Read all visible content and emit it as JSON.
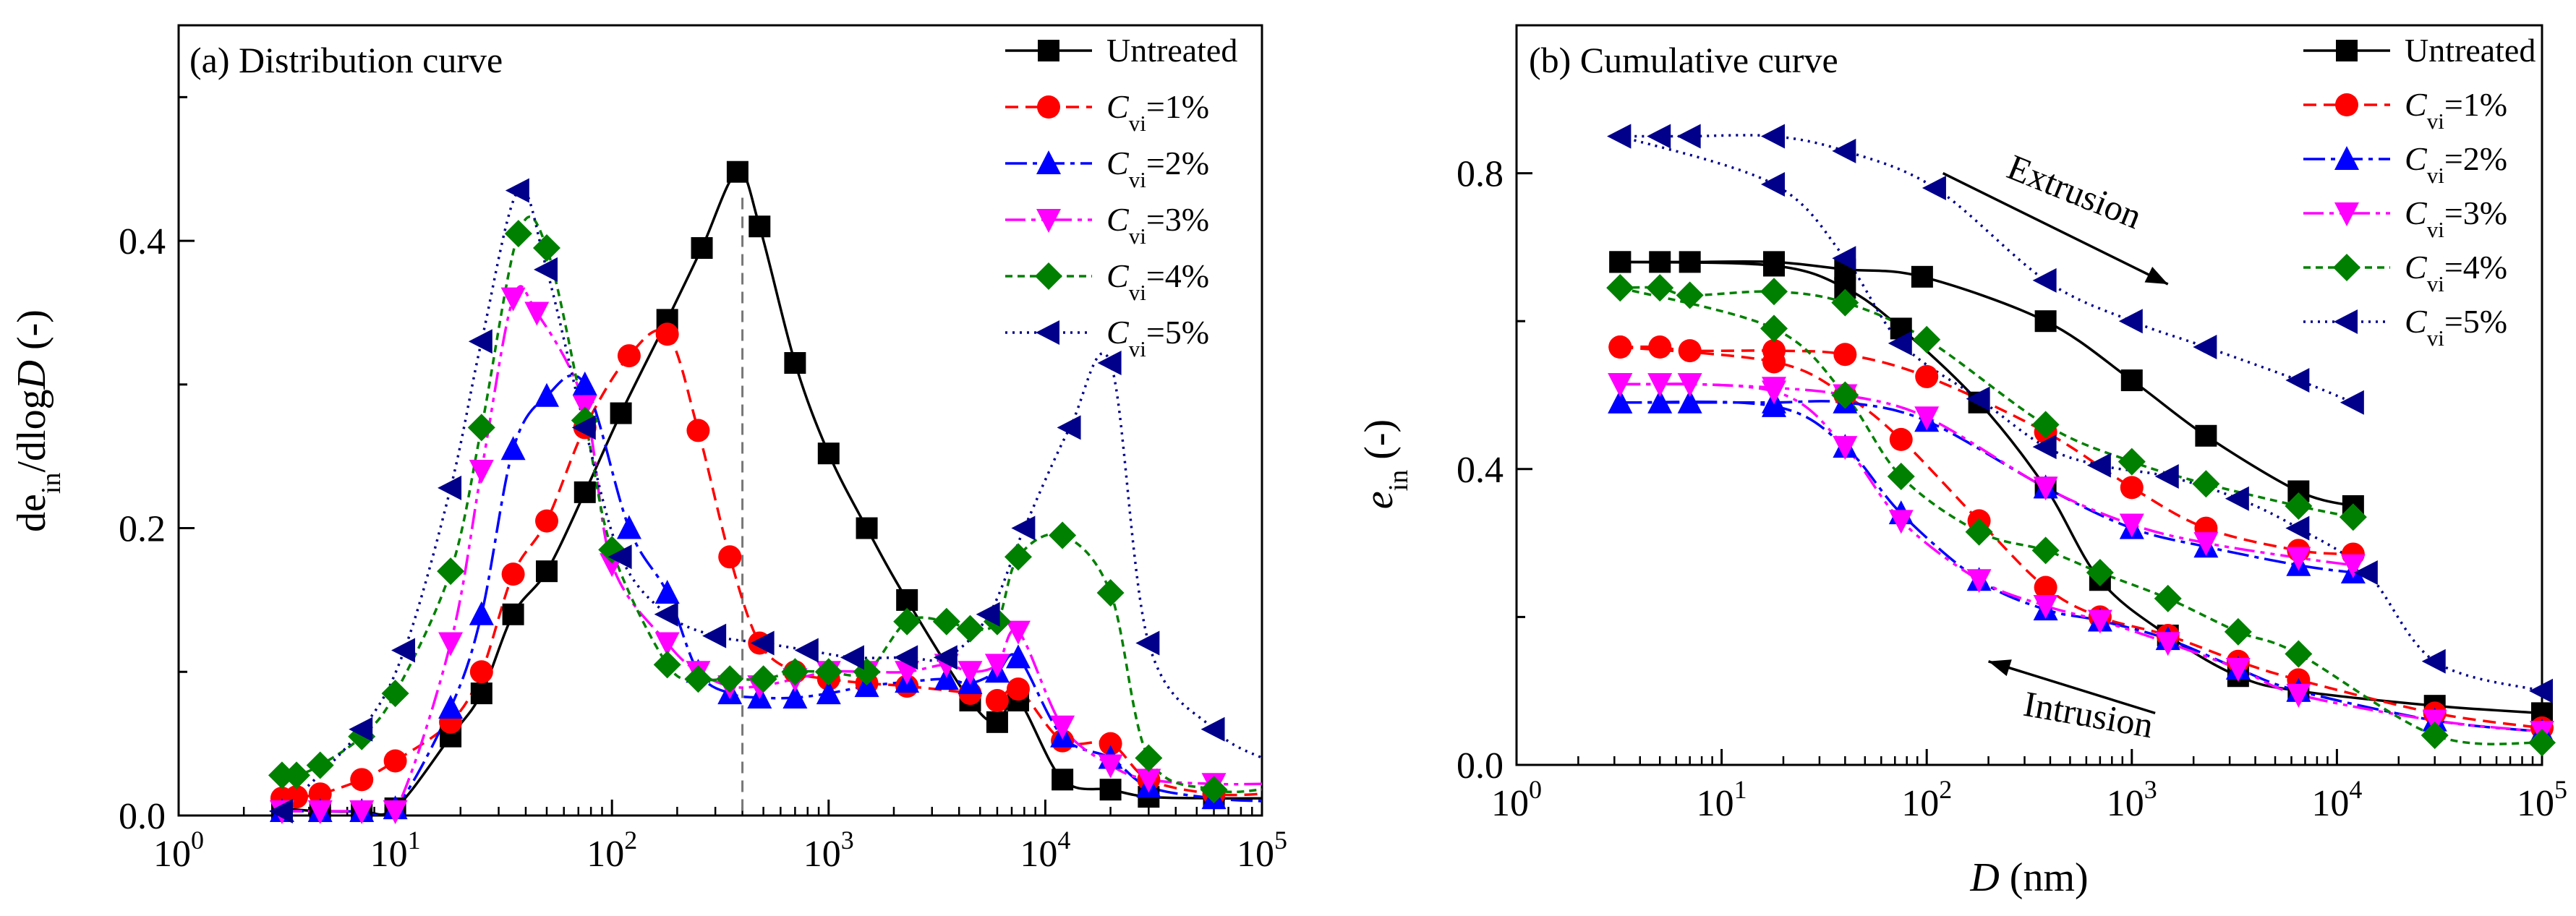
{
  "chart_data": [
    {
      "type": "line",
      "panel": "a",
      "title": "(a) Distribution curve",
      "xscale": "log",
      "xlim": [
        1,
        100000
      ],
      "ylim": [
        0,
        0.55
      ],
      "xlabel": "",
      "ylabel": {
        "pre": "de",
        "sub": "in",
        "mid": "/dlog",
        "ital": "D",
        "post": " (-)"
      },
      "xticks": [
        {
          "base": "10",
          "exp": "0",
          "value": 1
        },
        {
          "base": "10",
          "exp": "1",
          "value": 10
        },
        {
          "base": "10",
          "exp": "2",
          "value": 100
        },
        {
          "base": "10",
          "exp": "3",
          "value": 1000
        },
        {
          "base": "10",
          "exp": "4",
          "value": 10000
        },
        {
          "base": "10",
          "exp": "5",
          "value": 100000
        }
      ],
      "yticks": [
        {
          "label": "0.0",
          "value": 0
        },
        {
          "label": "0.2",
          "value": 0.2
        },
        {
          "label": "0.4",
          "value": 0.4
        }
      ],
      "reference_line_x": 400,
      "legend_position": "top-right",
      "series": [
        {
          "name": "Untreated",
          "legend": {
            "base": "Untreated"
          },
          "color": "#000000",
          "marker": "square",
          "dash": "solid",
          "x": [
            3,
            4.5,
            7,
            10,
            18,
            25,
            35,
            50,
            75,
            110,
            180,
            260,
            380,
            480,
            700,
            1000,
            1500,
            2300,
            4500,
            6000,
            7500,
            12000,
            20000,
            30000,
            60000,
            100000
          ],
          "y": [
            0.005,
            0.003,
            0.003,
            0.005,
            0.055,
            0.085,
            0.14,
            0.17,
            0.225,
            0.28,
            0.345,
            0.395,
            0.448,
            0.41,
            0.315,
            0.252,
            0.2,
            0.15,
            0.08,
            0.065,
            0.08,
            0.025,
            0.018,
            0.013,
            0.012,
            0.012
          ]
        },
        {
          "name": "Cvi=1%",
          "legend": {
            "base": "C",
            "sub": "vi",
            "post": "=1%"
          },
          "color": "#ff0000",
          "marker": "circle",
          "dash": "18,10",
          "x": [
            3,
            3.5,
            4.5,
            7,
            10,
            18,
            25,
            35,
            50,
            75,
            120,
            180,
            250,
            350,
            480,
            700,
            1000,
            1500,
            2300,
            4500,
            6000,
            7500,
            12000,
            20000,
            30000,
            60000,
            100000
          ],
          "y": [
            0.012,
            0.013,
            0.015,
            0.025,
            0.038,
            0.065,
            0.1,
            0.168,
            0.205,
            0.27,
            0.32,
            0.335,
            0.268,
            0.18,
            0.12,
            0.1,
            0.095,
            0.092,
            0.09,
            0.085,
            0.08,
            0.088,
            0.052,
            0.05,
            0.025,
            0.015,
            0.015
          ]
        },
        {
          "name": "Cvi=2%",
          "legend": {
            "base": "C",
            "sub": "vi",
            "post": "=2%"
          },
          "color": "#0000ff",
          "marker": "triangle-up",
          "dash": "30,8,6,8",
          "x": [
            3,
            4.5,
            7,
            10,
            18,
            25,
            35,
            50,
            75,
            120,
            180,
            250,
            350,
            480,
            700,
            1000,
            1500,
            2300,
            3500,
            4500,
            6000,
            7500,
            12000,
            20000,
            30000,
            60000,
            100000
          ],
          "y": [
            0.003,
            0.003,
            0.003,
            0.005,
            0.075,
            0.14,
            0.255,
            0.292,
            0.3,
            0.2,
            0.155,
            0.1,
            0.085,
            0.082,
            0.082,
            0.085,
            0.09,
            0.093,
            0.095,
            0.092,
            0.1,
            0.11,
            0.055,
            0.04,
            0.02,
            0.012,
            0.01
          ]
        },
        {
          "name": "Cvi=3%",
          "legend": {
            "base": "C",
            "sub": "vi",
            "post": "=3%"
          },
          "color": "#ff00ff",
          "marker": "triangle-down",
          "dash": "28,8,6,8,6,8",
          "x": [
            3,
            4.5,
            7,
            10,
            18,
            25,
            35,
            45,
            75,
            100,
            180,
            250,
            350,
            480,
            700,
            1000,
            1500,
            2300,
            3500,
            4500,
            6000,
            7500,
            12000,
            20000,
            30000,
            60000,
            100000
          ],
          "y": [
            0.003,
            0.003,
            0.003,
            0.003,
            0.12,
            0.24,
            0.36,
            0.35,
            0.285,
            0.175,
            0.12,
            0.1,
            0.09,
            0.09,
            0.095,
            0.1,
            0.1,
            0.1,
            0.105,
            0.1,
            0.105,
            0.128,
            0.062,
            0.035,
            0.025,
            0.022,
            0.022
          ]
        },
        {
          "name": "Cvi=4%",
          "legend": {
            "base": "C",
            "sub": "vi",
            "post": "=4%"
          },
          "color": "#008000",
          "marker": "diamond",
          "dash": "10,7",
          "x": [
            3,
            3.5,
            4.5,
            7,
            10,
            18,
            25,
            37,
            50,
            75,
            100,
            180,
            250,
            350,
            500,
            700,
            1000,
            1500,
            2300,
            3500,
            4500,
            6000,
            7500,
            12000,
            20000,
            30000,
            60000,
            100000
          ],
          "y": [
            0.028,
            0.028,
            0.035,
            0.055,
            0.085,
            0.17,
            0.27,
            0.405,
            0.395,
            0.275,
            0.185,
            0.105,
            0.095,
            0.095,
            0.095,
            0.1,
            0.1,
            0.1,
            0.135,
            0.135,
            0.13,
            0.135,
            0.18,
            0.195,
            0.155,
            0.04,
            0.018,
            0.018
          ]
        },
        {
          "name": "Cvi=5%",
          "legend": {
            "base": "C",
            "sub": "vi",
            "post": "=5%"
          },
          "color": "#00008b",
          "marker": "triangle-left",
          "dash": "3,7",
          "x": [
            3,
            7,
            11,
            18,
            25,
            37,
            50,
            75,
            110,
            180,
            300,
            500,
            800,
            1300,
            2300,
            3500,
            5500,
            8000,
            13000,
            20000,
            30000,
            60000,
            100000
          ],
          "y": [
            0.003,
            0.06,
            0.115,
            0.228,
            0.33,
            0.435,
            0.38,
            0.27,
            0.18,
            0.14,
            0.125,
            0.12,
            0.115,
            0.11,
            0.11,
            0.11,
            0.14,
            0.2,
            0.27,
            0.315,
            0.12,
            0.06,
            0.04
          ]
        }
      ]
    },
    {
      "type": "line",
      "panel": "b",
      "title": "(b) Cumulative curve",
      "xscale": "log",
      "xlim": [
        1,
        100000
      ],
      "ylim": [
        0,
        1.0
      ],
      "xlabel": {
        "ital": "D",
        "post": " (nm)"
      },
      "ylabel": {
        "ital": "e",
        "sub": "in",
        "post": " (-)"
      },
      "xticks": [
        {
          "base": "10",
          "exp": "0",
          "value": 1
        },
        {
          "base": "10",
          "exp": "1",
          "value": 10
        },
        {
          "base": "10",
          "exp": "2",
          "value": 100
        },
        {
          "base": "10",
          "exp": "3",
          "value": 1000
        },
        {
          "base": "10",
          "exp": "4",
          "value": 10000
        },
        {
          "base": "10",
          "exp": "5",
          "value": 100000
        }
      ],
      "yticks": [
        {
          "label": "0.0",
          "value": 0
        },
        {
          "label": "0.4",
          "value": 0.4
        },
        {
          "label": "0.8",
          "value": 0.8
        }
      ],
      "annotations": [
        {
          "text": "Extrusion",
          "arrow_from": [
            120,
            0.8
          ],
          "arrow_to": [
            1500,
            0.65
          ],
          "text_at": [
            500,
            0.76
          ],
          "rotation": 22
        },
        {
          "text": "Intrusion",
          "arrow_from": [
            1300,
            0.07
          ],
          "arrow_to": [
            200,
            0.14
          ],
          "text_at": [
            600,
            0.052
          ],
          "rotation": 10
        }
      ],
      "legend_position": "top-right",
      "series": [
        {
          "name": "Untreated",
          "legend": {
            "base": "Untreated"
          },
          "color": "#000000",
          "marker": "square",
          "dash": "solid",
          "extrusion": {
            "x": [
              3.2,
              5,
              7,
              18,
              40,
              95,
              380,
              1000,
              2300,
              6500,
              12000
            ],
            "y": [
              0.68,
              0.68,
              0.68,
              0.68,
              0.67,
              0.66,
              0.6,
              0.52,
              0.445,
              0.37,
              0.35
            ]
          },
          "intrusion": {
            "x": [
              3.2,
              18,
              40,
              75,
              180,
              380,
              700,
              1500,
              3300,
              6500,
              30000,
              100000
            ],
            "y": [
              0.68,
              0.675,
              0.645,
              0.59,
              0.49,
              0.375,
              0.25,
              0.175,
              0.12,
              0.1,
              0.08,
              0.07
            ]
          }
        },
        {
          "name": "Cvi=1%",
          "legend": {
            "base": "C",
            "sub": "vi",
            "post": "=1%"
          },
          "color": "#ff0000",
          "marker": "circle",
          "dash": "18,10",
          "extrusion": {
            "x": [
              3.2,
              5,
              7,
              18,
              40,
              100,
              380,
              1000,
              2300,
              6500,
              12000
            ],
            "y": [
              0.565,
              0.565,
              0.56,
              0.56,
              0.555,
              0.525,
              0.45,
              0.375,
              0.32,
              0.29,
              0.285
            ]
          },
          "intrusion": {
            "x": [
              3.2,
              18,
              40,
              75,
              180,
              380,
              700,
              1500,
              3300,
              6500,
              30000,
              100000
            ],
            "y": [
              0.565,
              0.545,
              0.5,
              0.44,
              0.33,
              0.24,
              0.2,
              0.175,
              0.14,
              0.115,
              0.07,
              0.05
            ]
          }
        },
        {
          "name": "Cvi=2%",
          "legend": {
            "base": "C",
            "sub": "vi",
            "post": "=2%"
          },
          "color": "#0000ff",
          "marker": "triangle-up",
          "dash": "30,8,6,8",
          "extrusion": {
            "x": [
              3.2,
              5,
              7,
              18,
              40,
              100,
              380,
              1000,
              2300,
              6500,
              12000
            ],
            "y": [
              0.49,
              0.49,
              0.49,
              0.49,
              0.49,
              0.465,
              0.375,
              0.32,
              0.295,
              0.27,
              0.26
            ]
          },
          "intrusion": {
            "x": [
              3.2,
              18,
              40,
              75,
              180,
              380,
              700,
              1500,
              3300,
              6500,
              30000,
              100000
            ],
            "y": [
              0.49,
              0.485,
              0.43,
              0.34,
              0.25,
              0.21,
              0.195,
              0.17,
              0.13,
              0.1,
              0.06,
              0.045
            ]
          }
        },
        {
          "name": "Cvi=3%",
          "legend": {
            "base": "C",
            "sub": "vi",
            "post": "=3%"
          },
          "color": "#ff00ff",
          "marker": "triangle-down",
          "dash": "28,8,6,8,6,8",
          "extrusion": {
            "x": [
              3.2,
              5,
              7,
              18,
              40,
              100,
              380,
              1000,
              2300,
              6500,
              12000
            ],
            "y": [
              0.515,
              0.515,
              0.515,
              0.51,
              0.5,
              0.47,
              0.375,
              0.325,
              0.3,
              0.28,
              0.27
            ]
          },
          "intrusion": {
            "x": [
              3.2,
              18,
              40,
              75,
              180,
              380,
              700,
              1500,
              3300,
              6500,
              30000,
              100000
            ],
            "y": [
              0.515,
              0.505,
              0.43,
              0.33,
              0.25,
              0.215,
              0.195,
              0.165,
              0.13,
              0.095,
              0.06,
              0.045
            ]
          }
        },
        {
          "name": "Cvi=4%",
          "legend": {
            "base": "C",
            "sub": "vi",
            "post": "=4%"
          },
          "color": "#008000",
          "marker": "diamond",
          "dash": "10,7",
          "extrusion": {
            "x": [
              3.2,
              5,
              7,
              18,
              40,
              100,
              380,
              1000,
              2300,
              6500,
              12000
            ],
            "y": [
              0.645,
              0.645,
              0.635,
              0.64,
              0.625,
              0.575,
              0.46,
              0.41,
              0.38,
              0.35,
              0.335
            ]
          },
          "intrusion": {
            "x": [
              3.2,
              18,
              40,
              75,
              180,
              380,
              700,
              1500,
              3300,
              6500,
              30000,
              100000
            ],
            "y": [
              0.645,
              0.59,
              0.5,
              0.39,
              0.315,
              0.29,
              0.26,
              0.225,
              0.18,
              0.15,
              0.04,
              0.03
            ]
          }
        },
        {
          "name": "Cvi=5%",
          "legend": {
            "base": "C",
            "sub": "vi",
            "post": "=5%"
          },
          "color": "#00008b",
          "marker": "triangle-left",
          "dash": "3,7",
          "extrusion": {
            "x": [
              3.2,
              5,
              7,
              18,
              40,
              110,
              380,
              1000,
              2300,
              6500,
              12000
            ],
            "y": [
              0.85,
              0.85,
              0.85,
              0.85,
              0.83,
              0.78,
              0.655,
              0.6,
              0.565,
              0.52,
              0.49
            ]
          },
          "intrusion": {
            "x": [
              3.2,
              18,
              40,
              75,
              180,
              380,
              700,
              1500,
              3300,
              6500,
              14000,
              30000,
              100000
            ],
            "y": [
              0.85,
              0.785,
              0.685,
              0.57,
              0.495,
              0.43,
              0.405,
              0.39,
              0.36,
              0.32,
              0.26,
              0.14,
              0.1
            ]
          }
        }
      ]
    }
  ]
}
